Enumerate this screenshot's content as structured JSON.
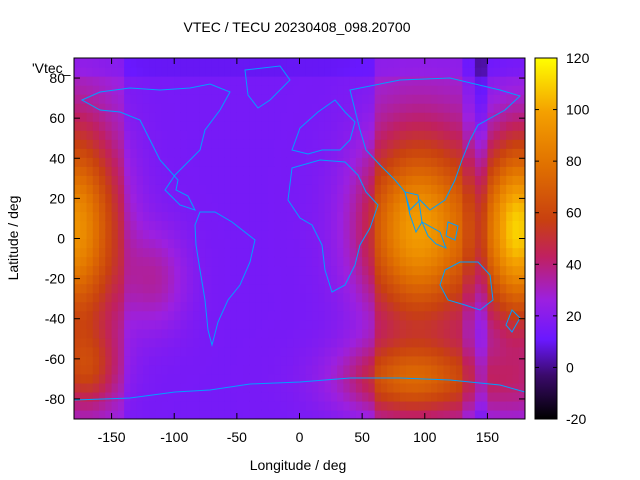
{
  "chart_data": {
    "type": "heatmap",
    "title": "VTEC / TECU 20230408_098.20700",
    "xlabel": "Longitude / deg",
    "ylabel": "Latitude / deg",
    "xlim": [
      -180,
      180
    ],
    "ylim": [
      -90,
      90
    ],
    "xticks": [
      -150,
      -100,
      -50,
      0,
      50,
      100,
      150
    ],
    "yticks": [
      -80,
      -60,
      -40,
      -20,
      0,
      20,
      40,
      60,
      80
    ],
    "colorbar": {
      "range": [
        -20,
        120
      ],
      "ticks": [
        -20,
        0,
        20,
        40,
        60,
        80,
        100,
        120
      ],
      "colormap": "black-blue-purple-red-orange-yellow"
    },
    "legend": {
      "position": "top-left",
      "entries": [
        "'Vtec_"
      ]
    },
    "grid": false,
    "overlay": "world coastlines (cyan)",
    "regions": [
      {
        "lon": -180,
        "lat": 0,
        "value": 85
      },
      {
        "lon": 75,
        "lat": 0,
        "value": 90
      },
      {
        "lon": 160,
        "lat": 0,
        "value": 100
      },
      {
        "lon": -100,
        "lat": -20,
        "value": 40
      },
      {
        "lon": -30,
        "lat": 0,
        "value": 20
      },
      {
        "lon": 0,
        "lat": 60,
        "value": 20
      },
      {
        "lon": 100,
        "lat": -65,
        "value": 70
      },
      {
        "lon": -180,
        "lat": -60,
        "value": 60
      }
    ]
  }
}
